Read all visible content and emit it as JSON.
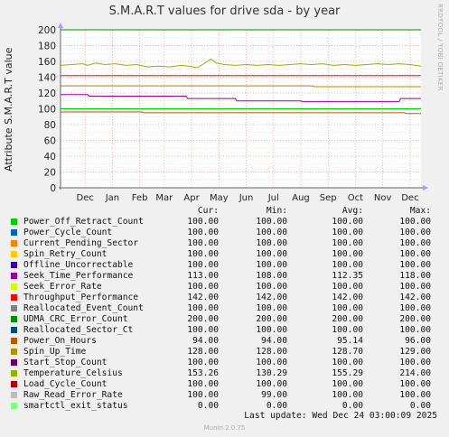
{
  "side_text": "RRDTOOL / TOBI OETIKER",
  "header": {
    "cur": "Cur:",
    "min": "Min:",
    "avg": "Avg:",
    "max": "Max:"
  },
  "last_update": "Last update: Wed Dec 24 03:00:09 2025",
  "footer": "Munin 2.0.75",
  "legend": [
    {
      "name": "Power_Off_Retract_Count",
      "color": "#00cc00",
      "cur": "100.00",
      "min": "100.00",
      "avg": "100.00",
      "max": "100.00"
    },
    {
      "name": "Power_Cycle_Count",
      "color": "#0066b3",
      "cur": "100.00",
      "min": "100.00",
      "avg": "100.00",
      "max": "100.00"
    },
    {
      "name": "Current_Pending_Sector",
      "color": "#ff8000",
      "cur": "100.00",
      "min": "100.00",
      "avg": "100.00",
      "max": "100.00"
    },
    {
      "name": "Spin_Retry_Count",
      "color": "#ffcc00",
      "cur": "100.00",
      "min": "100.00",
      "avg": "100.00",
      "max": "100.00"
    },
    {
      "name": "Offline_Uncorrectable",
      "color": "#330099",
      "cur": "100.00",
      "min": "100.00",
      "avg": "100.00",
      "max": "100.00"
    },
    {
      "name": "Seek_Time_Performance",
      "color": "#990099",
      "cur": "113.00",
      "min": "108.00",
      "avg": "112.35",
      "max": "118.00"
    },
    {
      "name": "Seek_Error_Rate",
      "color": "#ccff00",
      "cur": "100.00",
      "min": "100.00",
      "avg": "100.00",
      "max": "100.00"
    },
    {
      "name": "Throughput_Performance",
      "color": "#ff0000",
      "cur": "142.00",
      "min": "142.00",
      "avg": "142.00",
      "max": "142.00"
    },
    {
      "name": "Reallocated_Event_Count",
      "color": "#808080",
      "cur": "100.00",
      "min": "100.00",
      "avg": "100.00",
      "max": "100.00"
    },
    {
      "name": "UDMA_CRC_Error_Count",
      "color": "#008f00",
      "cur": "200.00",
      "min": "200.00",
      "avg": "200.00",
      "max": "200.00"
    },
    {
      "name": "Reallocated_Sector_Ct",
      "color": "#00487d",
      "cur": "100.00",
      "min": "100.00",
      "avg": "100.00",
      "max": "100.00"
    },
    {
      "name": "Power_On_Hours",
      "color": "#b35a00",
      "cur": "94.00",
      "min": "94.00",
      "avg": "95.14",
      "max": "96.00"
    },
    {
      "name": "Spin_Up_Time",
      "color": "#b38f00",
      "cur": "128.00",
      "min": "128.00",
      "avg": "128.70",
      "max": "129.00"
    },
    {
      "name": "Start_Stop_Count",
      "color": "#6b006b",
      "cur": "100.00",
      "min": "100.00",
      "avg": "100.00",
      "max": "100.00"
    },
    {
      "name": "Temperature_Celsius",
      "color": "#8fb300",
      "cur": "153.26",
      "min": "130.29",
      "avg": "155.29",
      "max": "214.00"
    },
    {
      "name": "Load_Cycle_Count",
      "color": "#b30000",
      "cur": "100.00",
      "min": "100.00",
      "avg": "100.00",
      "max": "100.00"
    },
    {
      "name": "Raw_Read_Error_Rate",
      "color": "#bebebe",
      "cur": "100.00",
      "min": "99.00",
      "avg": "100.00",
      "max": "100.00"
    },
    {
      "name": "smartctl_exit_status",
      "color": "#80ff80",
      "cur": "0.00",
      "min": "0.00",
      "avg": "0.00",
      "max": "0.00"
    }
  ],
  "chart_data": {
    "type": "line",
    "title": "S.M.A.R.T values for drive sda - by year",
    "ylabel": "Attribute S.M.A.R.T value",
    "ylim": [
      0,
      200
    ],
    "yticks": [
      0,
      20,
      40,
      60,
      80,
      100,
      120,
      140,
      160,
      180,
      200
    ],
    "x_ticks": [
      "Dec",
      "Jan",
      "Feb",
      "Mar",
      "Apr",
      "May",
      "Jun",
      "Jul",
      "Aug",
      "Sep",
      "Oct",
      "Nov",
      "Dec"
    ],
    "x_range": [
      0,
      13.2
    ],
    "x_tick_positions": [
      0.9,
      1.9,
      2.9,
      3.8,
      4.8,
      5.8,
      6.8,
      7.8,
      8.8,
      9.8,
      10.8,
      11.8,
      12.8
    ],
    "grid": true,
    "series": [
      {
        "name": "UDMA_CRC_Error_Count",
        "color": "#008f00",
        "x": [
          0,
          13.2
        ],
        "y": [
          200,
          200
        ]
      },
      {
        "name": "Temperature_Celsius",
        "color": "#8fb300",
        "x": [
          0,
          0.4,
          0.8,
          1.0,
          1.3,
          1.6,
          2.0,
          2.4,
          2.8,
          3.2,
          3.6,
          4.0,
          4.4,
          4.7,
          5.0,
          5.2,
          5.5,
          5.7,
          6.0,
          6.4,
          6.8,
          7.2,
          7.6,
          8.0,
          8.4,
          8.8,
          9.2,
          9.6,
          10.0,
          10.4,
          10.8,
          11.2,
          11.6,
          12.0,
          12.4,
          12.8,
          13.2
        ],
        "y": [
          155,
          156,
          157,
          155,
          158,
          156,
          157,
          155,
          156,
          153,
          154,
          153,
          155,
          154,
          152,
          156,
          163,
          158,
          156,
          155,
          156,
          155,
          156,
          155,
          156,
          157,
          156,
          157,
          155,
          156,
          155,
          156,
          157,
          156,
          157,
          156,
          154
        ]
      },
      {
        "name": "Throughput_Performance",
        "color": "#ff0000",
        "x": [
          0,
          13.2
        ],
        "y": [
          142,
          142
        ]
      },
      {
        "name": "Spin_Up_Time",
        "color": "#b38f00",
        "x": [
          0,
          9.2,
          9.3,
          13.2
        ],
        "y": [
          129,
          129,
          128,
          128
        ]
      },
      {
        "name": "Seek_Time_Performance",
        "color": "#990099",
        "x": [
          0,
          1.0,
          1.05,
          4.6,
          4.65,
          6.4,
          6.45,
          8.8,
          8.85,
          12.4,
          12.45,
          13.2
        ],
        "y": [
          118,
          118,
          116,
          116,
          113,
          113,
          110,
          110,
          109,
          109,
          113,
          113
        ]
      },
      {
        "name": "Power_On_Hours",
        "color": "#b35a00",
        "x": [
          0,
          3.0,
          3.05,
          12.6,
          12.65,
          13.2
        ],
        "y": [
          96,
          96,
          95,
          95,
          94,
          94
        ]
      },
      {
        "name": "Power_Off_Retract_Count",
        "color": "#00cc00",
        "x": [
          0,
          13.2
        ],
        "y": [
          100,
          100
        ]
      },
      {
        "name": "smartctl_exit_status",
        "color": "#80ff80",
        "x": [
          0,
          13.2
        ],
        "y": [
          0,
          0
        ]
      }
    ]
  }
}
